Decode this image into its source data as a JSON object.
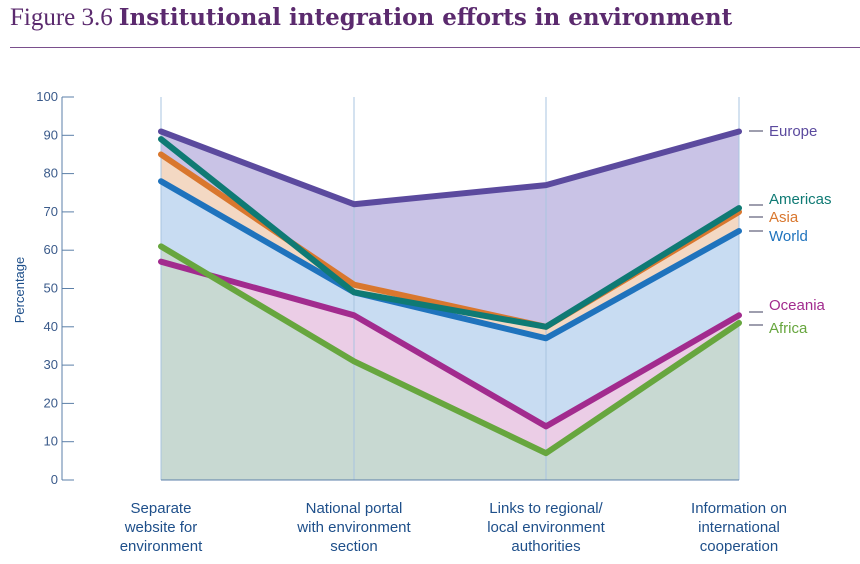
{
  "figure": {
    "number": "Figure 3.6",
    "title": "Institutional integration efforts in environment"
  },
  "chart_data": {
    "type": "line",
    "categories": [
      [
        "Separate",
        "website for",
        "environment"
      ],
      [
        "National portal",
        "with environment",
        "section"
      ],
      [
        "Links to regional/",
        "local environment",
        "authorities"
      ],
      [
        "Information on",
        "international",
        "cooperation"
      ]
    ],
    "ylabel": "Percentage",
    "ylim": [
      0,
      100
    ],
    "yticks": [
      0,
      10,
      20,
      30,
      40,
      50,
      60,
      70,
      80,
      90,
      100
    ],
    "series": [
      {
        "name": "Europe",
        "values": [
          91,
          72,
          77,
          91
        ],
        "color": "#5b4a9e",
        "fill": "#c9c3e6"
      },
      {
        "name": "Americas",
        "values": [
          89,
          49,
          40,
          71
        ],
        "color": "#0f7a74"
      },
      {
        "name": "Asia",
        "values": [
          85,
          51,
          40,
          70
        ],
        "color": "#d9772e",
        "fill": "#f3d8c3"
      },
      {
        "name": "World",
        "values": [
          78,
          49,
          37,
          65
        ],
        "color": "#1f73bd",
        "fill": "#c8dcf2"
      },
      {
        "name": "Oceania",
        "values": [
          57,
          43,
          14,
          43
        ],
        "color": "#a22b8e",
        "fill": "#ebcde6"
      },
      {
        "name": "Africa",
        "values": [
          61,
          31,
          7,
          41
        ],
        "color": "#67a63e",
        "fill": "#c8d9d2"
      }
    ]
  }
}
